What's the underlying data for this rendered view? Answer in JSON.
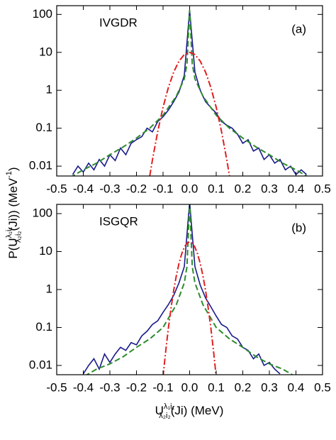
{
  "chart_data": [
    {
      "type": "line",
      "label": "IVGDR",
      "panel": "(a)",
      "ylabel": [
        "P(U",
        "λ₁i₁",
        "λ₂i₂",
        "(Ji)) (MeV",
        "-1",
        ")"
      ],
      "log_y": true,
      "xlim": [
        -0.5,
        0.5
      ],
      "xticks": [
        -0.5,
        -0.4,
        -0.3,
        -0.2,
        -0.1,
        {
          "value": 0,
          "label": "0.0"
        },
        0.1,
        0.2,
        0.3,
        0.4,
        0.5
      ],
      "ylim": [
        0.0055,
        170
      ],
      "yticks": [
        0.01,
        0.1,
        1,
        10,
        100
      ],
      "series": [
        {
          "color": "#1a1a8c",
          "style": "solid",
          "x": [
            -0.44,
            -0.42,
            -0.4,
            -0.38,
            -0.36,
            -0.34,
            -0.32,
            -0.3,
            -0.28,
            -0.26,
            -0.24,
            -0.22,
            -0.2,
            -0.18,
            -0.16,
            -0.14,
            -0.12,
            -0.1,
            -0.08,
            -0.06,
            -0.04,
            -0.02,
            0,
            0.02,
            0.04,
            0.06,
            0.08,
            0.1,
            0.12,
            0.14,
            0.16,
            0.18,
            0.2,
            0.22,
            0.24,
            0.26,
            0.28,
            0.3,
            0.32,
            0.34,
            0.36,
            0.38,
            0.4,
            0.42,
            0.44
          ],
          "values": [
            0.006,
            0.01,
            0.007,
            0.012,
            0.008,
            0.015,
            0.01,
            0.02,
            0.014,
            0.03,
            0.02,
            0.04,
            0.05,
            0.06,
            0.1,
            0.08,
            0.15,
            0.2,
            0.3,
            0.5,
            0.9,
            2.5,
            130,
            3,
            1,
            0.5,
            0.35,
            0.25,
            0.15,
            0.12,
            0.1,
            0.07,
            0.04,
            0.05,
            0.025,
            0.03,
            0.015,
            0.02,
            0.012,
            0.015,
            0.008,
            0.01,
            0.006,
            0.008,
            0.006
          ]
        },
        {
          "color": "#2e8b2e",
          "style": "dashed",
          "x": [
            -0.45,
            -0.4,
            -0.35,
            -0.3,
            -0.25,
            -0.2,
            -0.15,
            -0.1,
            -0.05,
            -0.02,
            -0.01,
            0,
            0.01,
            0.02,
            0.05,
            0.1,
            0.15,
            0.2,
            0.25,
            0.3,
            0.35,
            0.4,
            0.45
          ],
          "values": [
            0.005,
            0.008,
            0.012,
            0.02,
            0.032,
            0.055,
            0.1,
            0.22,
            0.7,
            2,
            5,
            130,
            5,
            2,
            0.7,
            0.22,
            0.1,
            0.055,
            0.032,
            0.02,
            0.012,
            0.008,
            0.005
          ]
        },
        {
          "color": "#e02020",
          "style": "dashdot",
          "x": [
            -0.15,
            -0.14,
            -0.12,
            -0.1,
            -0.08,
            -0.06,
            -0.04,
            -0.02,
            0,
            0.02,
            0.04,
            0.06,
            0.08,
            0.1,
            0.12,
            0.14,
            0.15
          ],
          "values": [
            0.0055,
            0.0145,
            0.082,
            0.357,
            1.18,
            3.01,
            5.87,
            8.75,
            10,
            8.75,
            5.87,
            3.01,
            1.18,
            0.357,
            0.082,
            0.0145,
            0.0055
          ]
        }
      ]
    },
    {
      "type": "line",
      "label": "ISGQR",
      "panel": "(b)",
      "xlabel": [
        "U",
        "λ₁i₁",
        "λ₂i₂",
        "(Ji) (MeV)"
      ],
      "log_y": true,
      "xlim": [
        -0.5,
        0.5
      ],
      "xticks": [
        -0.5,
        -0.4,
        -0.3,
        -0.2,
        -0.1,
        {
          "value": 0,
          "label": "0.0"
        },
        0.1,
        0.2,
        0.3,
        0.4,
        0.5
      ],
      "ylim": [
        0.0057,
        175
      ],
      "yticks": [
        0.01,
        0.1,
        1,
        10,
        100
      ],
      "series": [
        {
          "color": "#1a1a8c",
          "style": "solid",
          "x": [
            -0.44,
            -0.42,
            -0.4,
            -0.38,
            -0.36,
            -0.34,
            -0.32,
            -0.3,
            -0.28,
            -0.26,
            -0.24,
            -0.22,
            -0.2,
            -0.18,
            -0.16,
            -0.14,
            -0.12,
            -0.1,
            -0.08,
            -0.06,
            -0.04,
            -0.02,
            0,
            0.02,
            0.04,
            0.06,
            0.08,
            0.1,
            0.12,
            0.14,
            0.16,
            0.18,
            0.2,
            0.22,
            0.24,
            0.26,
            0.28,
            0.3,
            0.32,
            0.34,
            0.36,
            0.38,
            0.4,
            0.42,
            0.44
          ],
          "values": [
            null,
            null,
            0.006,
            0.01,
            0.015,
            0.008,
            0.02,
            0.012,
            0.02,
            0.03,
            0.025,
            0.04,
            0.035,
            0.06,
            0.08,
            0.12,
            0.15,
            0.25,
            0.4,
            0.7,
            1.5,
            4,
            200,
            4,
            1.3,
            0.6,
            0.35,
            0.2,
            0.12,
            0.1,
            0.06,
            0.05,
            0.03,
            0.025,
            0.015,
            0.02,
            0.01,
            0.012,
            0.008,
            0.006,
            null,
            0.006,
            null,
            0.008,
            null
          ]
        },
        {
          "color": "#2e8b2e",
          "style": "dashed",
          "x": [
            -0.45,
            -0.4,
            -0.35,
            -0.3,
            -0.25,
            -0.2,
            -0.15,
            -0.1,
            -0.05,
            -0.02,
            -0.01,
            0,
            0.01,
            0.02,
            0.05,
            0.1,
            0.15,
            0.2,
            0.25,
            0.3,
            0.35,
            0.4,
            0.45
          ],
          "values": [
            0.003,
            0.005,
            0.008,
            0.011,
            0.017,
            0.03,
            0.05,
            0.1,
            0.4,
            1.5,
            4,
            200,
            4,
            1.5,
            0.4,
            0.1,
            0.05,
            0.03,
            0.017,
            0.011,
            0.008,
            0.005,
            0.003
          ]
        },
        {
          "color": "#e02020",
          "style": "dashdot",
          "x": [
            -0.1,
            -0.09,
            -0.08,
            -0.07,
            -0.06,
            -0.05,
            -0.04,
            -0.03,
            -0.02,
            -0.01,
            0,
            0.01,
            0.02,
            0.03,
            0.04,
            0.05,
            0.06,
            0.07,
            0.08,
            0.09,
            0.1
          ],
          "values": [
            0.005,
            0.0236,
            0.095,
            0.324,
            0.94,
            2.32,
            4.85,
            8.6,
            13.0,
            16.6,
            18,
            16.6,
            13.0,
            8.6,
            4.85,
            2.32,
            0.94,
            0.324,
            0.095,
            0.0236,
            0.005
          ]
        }
      ]
    }
  ]
}
